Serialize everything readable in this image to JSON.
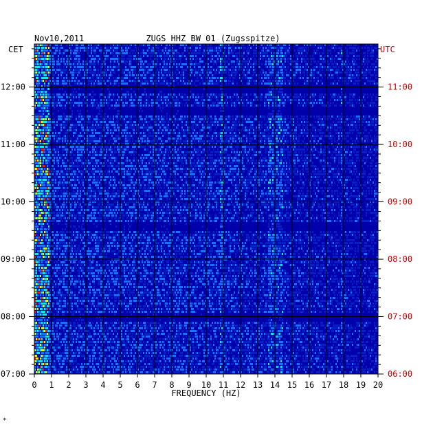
{
  "chart_data": {
    "type": "heatmap",
    "date": "Nov10,2011",
    "title": "ZUGS HHZ BW 01 (Zugsspitze)",
    "xlabel": "FREQUENCY (HZ)",
    "left_axis_label": "CET",
    "right_axis_label": "UTC",
    "xlim": [
      0,
      20
    ],
    "x_ticks": [
      "0",
      "1",
      "2",
      "3",
      "4",
      "5",
      "6",
      "7",
      "8",
      "9",
      "10",
      "11",
      "12",
      "13",
      "14",
      "15",
      "16",
      "17",
      "18",
      "19",
      "20"
    ],
    "y_range_cet": [
      "07:00",
      "12:45"
    ],
    "y_ticks_cet": [
      "12:00",
      "11:00",
      "10:00",
      "09:00",
      "08:00",
      "07:00"
    ],
    "y_ticks_utc": [
      "11:00",
      "10:00",
      "09:00",
      "08:00",
      "07:00",
      "06:00"
    ],
    "minor_ticks_per_hour": 6,
    "grid": true,
    "colors": {
      "background": "#0000aa",
      "low": "#0a1ec8",
      "mid": "#1e6eff",
      "high": "#20e0e8",
      "peak_yellow": "#f0f020",
      "peak_red": "#e02010",
      "grid_line": "#000000",
      "left_axis_text": "#000000",
      "right_axis_text": "#cc0000"
    },
    "bright_bands_hz": [
      {
        "from": 0,
        "to": 0.8,
        "intensity": "high"
      },
      {
        "from": 10.8,
        "to": 11.0,
        "intensity": "mid"
      },
      {
        "from": 13.6,
        "to": 14.4,
        "intensity": "mid"
      },
      {
        "from": 17.8,
        "to": 17.9,
        "intensity": "mid"
      }
    ],
    "dark_bands_cet": [
      "12:00",
      "11:35",
      "09:35",
      "08:00"
    ]
  },
  "footnote_mark": "*"
}
